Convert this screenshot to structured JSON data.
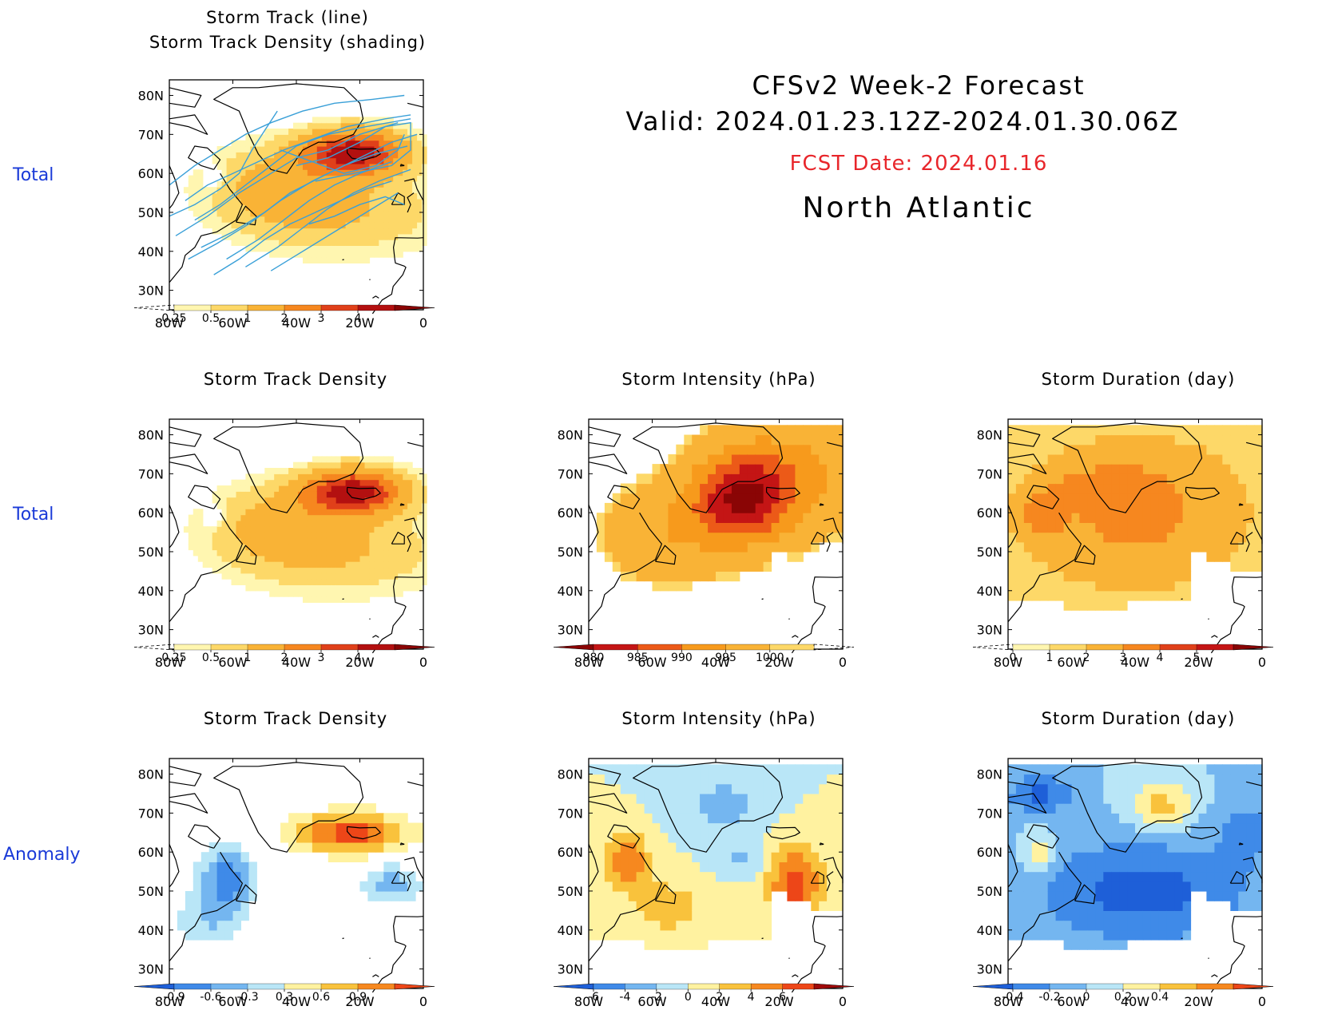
{
  "header": {
    "line1": "CFSv2 Week-2 Forecast",
    "line2": "Valid: 2024.01.23.12Z-2024.01.30.06Z",
    "fcst": "FCST Date: 2024.01.16",
    "region": "North Atlantic",
    "fcst_color": "#e8262b"
  },
  "row_labels": [
    "Total",
    "Total",
    "Anomaly"
  ],
  "lat_labels": [
    "80N",
    "70N",
    "60N",
    "50N",
    "40N",
    "30N"
  ],
  "lon_labels": [
    "80W",
    "60W",
    "40W",
    "20W",
    "0"
  ],
  "panels": [
    {
      "id": "p1",
      "title1": "Storm Track (line)",
      "title2": "Storm Track Density (shading)",
      "scheme": "density",
      "tracks": true,
      "colorbar": {
        "labels": [
          "0.25",
          "0.5",
          "1",
          "2",
          "3",
          "4"
        ],
        "dashed_left": true,
        "dashed_right": false
      }
    },
    {
      "id": "p2",
      "title1": "Storm Track Density",
      "scheme": "density",
      "colorbar": {
        "labels": [
          "0.25",
          "0.5",
          "1",
          "2",
          "3",
          "4"
        ],
        "dashed_left": true,
        "dashed_right": false
      }
    },
    {
      "id": "p3",
      "title1": "Storm Intensity (hPa)",
      "scheme": "intensity",
      "colorbar": {
        "labels": [
          "980",
          "985",
          "990",
          "995",
          "1000"
        ],
        "dashed_left": false,
        "dashed_right": true
      }
    },
    {
      "id": "p4",
      "title1": "Storm Duration (day)",
      "scheme": "duration",
      "colorbar": {
        "labels": [
          "0",
          "1",
          "2",
          "3",
          "4",
          "5"
        ],
        "dashed_left": true,
        "dashed_right": false
      }
    },
    {
      "id": "p5",
      "title1": "Storm Track Density",
      "scheme": "anom",
      "colorbar": {
        "labels": [
          "-0.9",
          "-0.6",
          "-0.3",
          "0.3",
          "0.6",
          "0.9"
        ],
        "dashed_left": false,
        "dashed_right": false
      }
    },
    {
      "id": "p6",
      "title1": "Storm Intensity (hPa)",
      "scheme": "anom_int",
      "colorbar": {
        "labels": [
          "-6",
          "-4",
          "-2",
          "0",
          "2",
          "4",
          "6"
        ],
        "dashed_left": false,
        "dashed_right": false
      }
    },
    {
      "id": "p7",
      "title1": "Storm Duration (day)",
      "scheme": "anom_dur",
      "colorbar": {
        "labels": [
          "-0.4",
          "-0.2",
          "0",
          "0.2",
          "0.4"
        ],
        "dashed_left": false,
        "dashed_right": false
      }
    }
  ],
  "colors": {
    "density": [
      "#fff6b0",
      "#fdd868",
      "#f9b336",
      "#f6871f",
      "#e0401a",
      "#b31010",
      "#8a0505"
    ],
    "intensity": [
      "#8a0505",
      "#c41515",
      "#ec5a18",
      "#f79a1c",
      "#f9b336",
      "#fdd868",
      "#fff6b0"
    ],
    "duration": [
      "#fff6b0",
      "#fdd868",
      "#f9b336",
      "#f6871f",
      "#e0401a",
      "#c41515",
      "#8a0505"
    ],
    "anom": [
      "#1e5fd8",
      "#3f8ae8",
      "#74b6f0",
      "#b9e6f7",
      "#ffffff",
      "#fff2a0",
      "#f9c23c",
      "#f6881f",
      "#ed4618"
    ],
    "anom_int": [
      "#1e5fd8",
      "#3f8ae8",
      "#74b6f0",
      "#b9e6f7",
      "#fff2a0",
      "#f9c23c",
      "#f6881f",
      "#ed4618",
      "#a00a0a"
    ],
    "anom_dur": [
      "#1e5fd8",
      "#3f8ae8",
      "#74b6f0",
      "#b9e6f7",
      "#fff2a0",
      "#f9c23c",
      "#f6881f",
      "#ed4618"
    ],
    "track": "#3aa0d8"
  }
}
